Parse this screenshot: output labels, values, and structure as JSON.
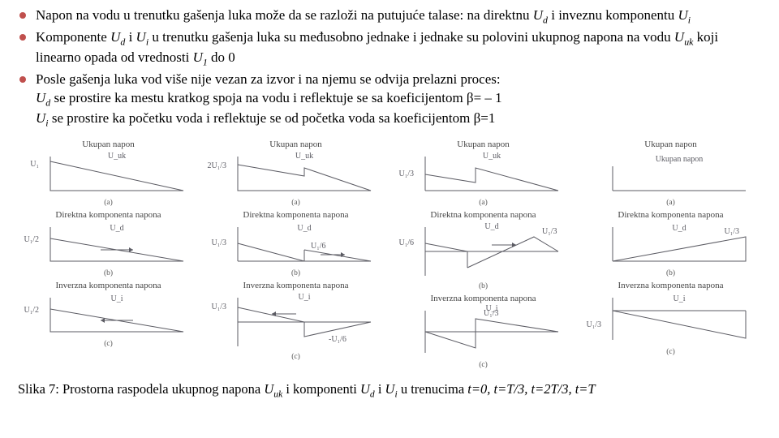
{
  "bullets": {
    "b1_a": "Napon na vodu u trenutku gašenja luka može da se razloži na putujuće talase: na direktnu ",
    "b1_b": " i inveznu komponentu ",
    "b2_a": "Komponente ",
    "b2_b": " i ",
    "b2_c": " u trenutku gašenja luka su međusobno jednake i jednake su polovini ukupnog napona na vodu ",
    "b2_d": " koji linearno opada od vrednosti ",
    "b2_e": " do 0",
    "b3_a": "Posle gašenja luka vod više nije vezan za izvor i na njemu se odvija prelazni proces:",
    "b3_b": " se prostire ka mestu kratkog spoja na vodu i reflektuje se sa koeficijentom β= – 1",
    "b3_c": " se prostire ka početku voda i reflektuje se od početka voda sa koeficijentom β=1"
  },
  "sym": {
    "Ud": "U",
    "Ud_s": "d",
    "Ui": "U",
    "Ui_s": "i",
    "Uuk": "U",
    "Uuk_s": "uk",
    "U1": "U",
    "U1_s": "1"
  },
  "ink": "#5b5b63",
  "figure": {
    "rows": [
      "Ukupan napon",
      "Direktna komponenta napona",
      "Inverzna komponenta napona"
    ],
    "labels_sub": [
      "(a)",
      "(b)",
      "(c)"
    ],
    "cols": [
      {
        "t": "t=0",
        "a": {
          "type": "tri_down",
          "left": "U₁",
          "top": "U_uk"
        },
        "b": {
          "type": "tri_r",
          "left": "U₁/2",
          "top": "U_d",
          "arrow": "right"
        },
        "c": {
          "type": "tri_r",
          "left": "U₁/2",
          "top": "U_i",
          "arrow": "left"
        }
      },
      {
        "t": "t=T/3",
        "a": {
          "type": "trap_step",
          "left": "2U₁/3",
          "top": "U_uk"
        },
        "b": {
          "type": "split_half",
          "left": "U₁/3",
          "mid": "U₁/6",
          "top": "U_d",
          "arrow": "right"
        },
        "c": {
          "type": "dip",
          "left": "U₁/3",
          "mid": "-U₁/6",
          "top": "U_i",
          "arrow": "left"
        }
      },
      {
        "t": "t=2T/3",
        "a": {
          "type": "trap_step2",
          "left": "U₁/3",
          "top": "U_uk"
        },
        "b": {
          "type": "split_neg",
          "left": "U₁/6",
          "mid": "U₁/3",
          "top": "U_d",
          "arrow": "right"
        },
        "c": {
          "type": "dip2",
          "left": "U₁/3",
          "top": "U_i"
        }
      },
      {
        "t": "t=T",
        "a": {
          "type": "flat0",
          "top": "Ukupan napon"
        },
        "b": {
          "type": "tri_up",
          "right": "U₁/3",
          "top": "U_d"
        },
        "c": {
          "type": "tri_neg",
          "left": "U₁/3",
          "top": "U_i"
        }
      }
    ]
  },
  "caption": {
    "pre": "Slika 7: Prostorna raspodela ukupnog napona ",
    "mid1": " i komponenti ",
    "mid2": " i ",
    "mid3": " u trenucima ",
    "times": "t=0, t=T/3, t=2T/3, t=T"
  }
}
